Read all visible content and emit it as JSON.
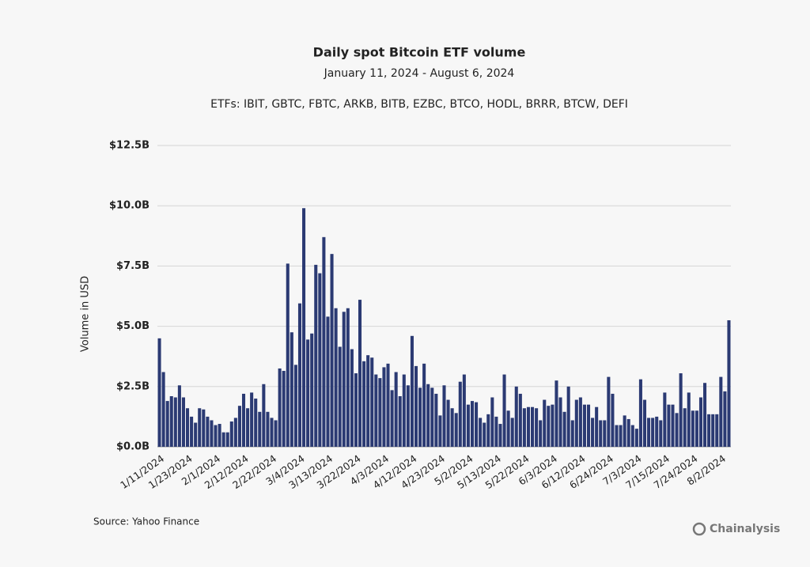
{
  "chart_data": {
    "type": "bar",
    "title": "Daily spot Bitcoin ETF volume",
    "subtitle": "January 11, 2024 - August 6, 2024",
    "note": "ETFs: IBIT, GBTC,  FBTC, ARKB, BITB, EZBC, BTCO, HODL, BRRR, BTCW, DEFI",
    "y_label": "Volume in USD",
    "source": "Source: Yahoo Finance",
    "brand": "Chainalysis",
    "color": "#2b3a73",
    "grid": true,
    "ylim": [
      0,
      12.5
    ],
    "yticks": [
      {
        "value": 0,
        "label": "$0.0B"
      },
      {
        "value": 2.5,
        "label": "$2.5B"
      },
      {
        "value": 5,
        "label": "$5.0B"
      },
      {
        "value": 7.5,
        "label": "$7.5B"
      },
      {
        "value": 10,
        "label": "$10.0B"
      },
      {
        "value": 12.5,
        "label": "$12.5B"
      }
    ],
    "categories": [
      "1/11/2024",
      null,
      null,
      null,
      null,
      null,
      null,
      "1/23/2024",
      null,
      null,
      null,
      null,
      null,
      null,
      "2/1/2024",
      null,
      null,
      null,
      null,
      null,
      null,
      "2/12/2024",
      null,
      null,
      null,
      null,
      null,
      null,
      "2/22/2024",
      null,
      null,
      null,
      null,
      null,
      null,
      "3/4/2024",
      null,
      null,
      null,
      null,
      null,
      null,
      "3/13/2024",
      null,
      null,
      null,
      null,
      null,
      null,
      "3/22/2024",
      null,
      null,
      null,
      null,
      null,
      null,
      "4/3/2024",
      null,
      null,
      null,
      null,
      null,
      null,
      "4/12/2024",
      null,
      null,
      null,
      null,
      null,
      null,
      "4/23/2024",
      null,
      null,
      null,
      null,
      null,
      null,
      "5/2/2024",
      null,
      null,
      null,
      null,
      null,
      null,
      "5/13/2024",
      null,
      null,
      null,
      null,
      null,
      null,
      "5/22/2024",
      null,
      null,
      null,
      null,
      null,
      null,
      "6/3/2024",
      null,
      null,
      null,
      null,
      null,
      null,
      "6/12/2024",
      null,
      null,
      null,
      null,
      null,
      null,
      "6/24/2024",
      null,
      null,
      null,
      null,
      null,
      null,
      "7/3/2024",
      null,
      null,
      null,
      null,
      null,
      null,
      "7/15/2024",
      null,
      null,
      null,
      null,
      null,
      null,
      "7/24/2024",
      null,
      null,
      null,
      null,
      null,
      null,
      "8/2/2024",
      null,
      null
    ],
    "values": [
      4.5,
      3.1,
      1.9,
      2.1,
      2.05,
      2.55,
      2.05,
      1.6,
      1.25,
      1.0,
      1.6,
      1.55,
      1.25,
      1.1,
      0.9,
      0.95,
      0.6,
      0.6,
      1.05,
      1.2,
      1.7,
      2.2,
      1.6,
      2.25,
      2.0,
      1.45,
      2.6,
      1.45,
      1.2,
      1.1,
      3.25,
      3.15,
      7.6,
      4.75,
      3.4,
      5.95,
      9.9,
      4.45,
      4.7,
      7.55,
      7.2,
      8.7,
      5.4,
      8.0,
      5.75,
      4.15,
      5.6,
      5.75,
      4.05,
      3.05,
      6.1,
      3.55,
      3.8,
      3.7,
      3.0,
      2.85,
      3.3,
      3.45,
      2.35,
      3.1,
      2.1,
      3.0,
      2.55,
      4.6,
      3.35,
      2.45,
      3.45,
      2.6,
      2.45,
      2.2,
      1.3,
      2.55,
      1.95,
      1.6,
      1.4,
      2.7,
      3.0,
      1.75,
      1.9,
      1.85,
      1.2,
      1.0,
      1.35,
      2.05,
      1.25,
      0.95,
      3.0,
      1.5,
      1.2,
      2.5,
      2.2,
      1.6,
      1.65,
      1.65,
      1.6,
      1.1,
      1.95,
      1.7,
      1.75,
      2.75,
      2.05,
      1.45,
      2.5,
      1.1,
      1.95,
      2.05,
      1.75,
      1.75,
      1.2,
      1.65,
      1.1,
      1.1,
      2.9,
      2.2,
      0.9,
      0.9,
      1.3,
      1.15,
      0.9,
      0.75,
      2.8,
      1.95,
      1.2,
      1.2,
      1.25,
      1.1,
      2.25,
      1.75,
      1.75,
      1.4,
      3.05,
      1.6,
      2.25,
      1.5,
      1.5,
      2.05,
      2.65,
      1.35,
      1.35,
      1.35,
      2.9,
      2.3,
      5.25
    ]
  }
}
